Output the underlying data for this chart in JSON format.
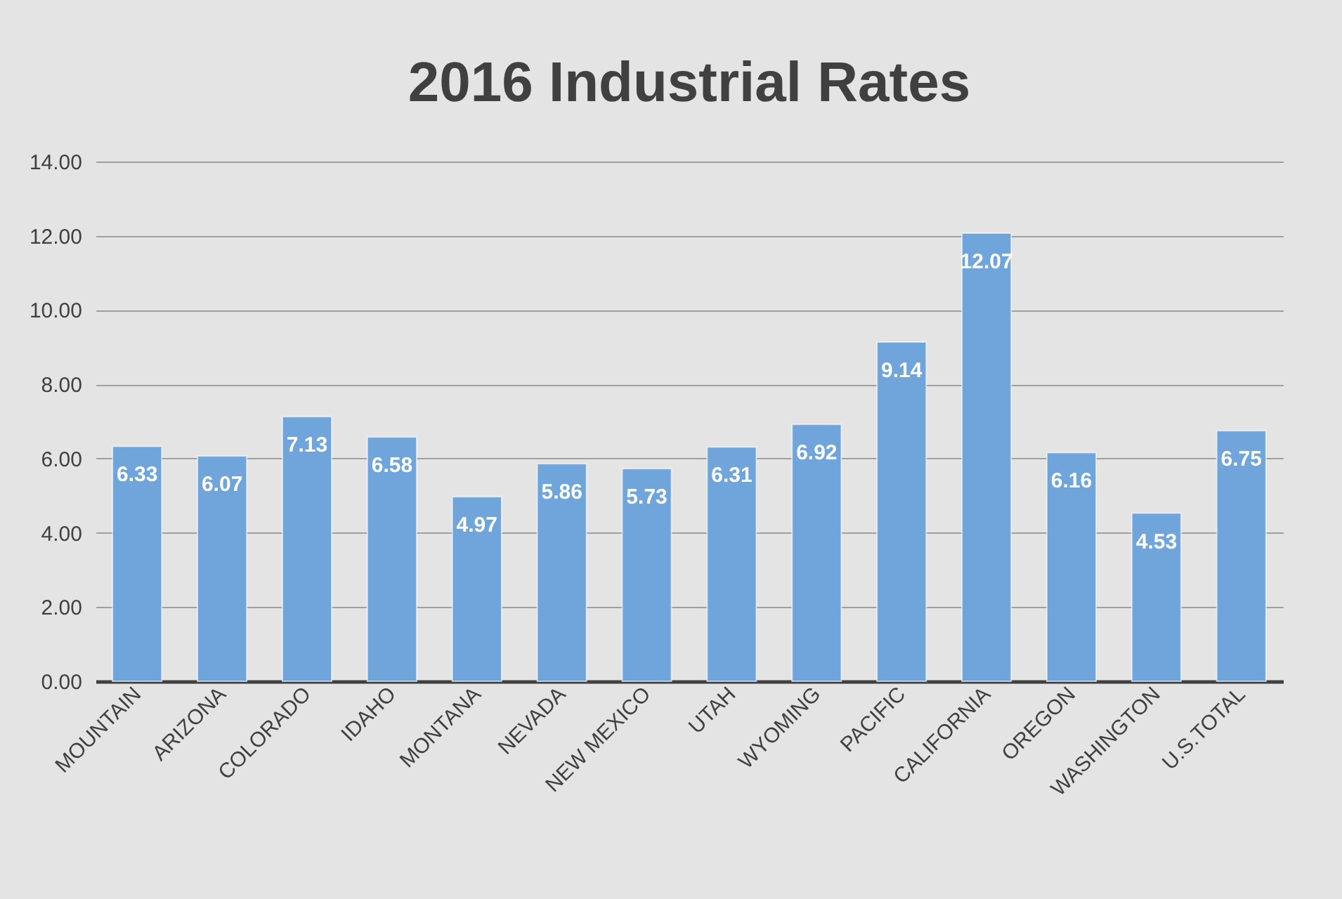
{
  "chart_data": {
    "type": "bar",
    "title": "2016 Industrial Rates",
    "categories": [
      "MOUNTAIN",
      "ARIZONA",
      "COLORADO",
      "IDAHO",
      "MONTANA",
      "NEVADA",
      "NEW MEXICO",
      "UTAH",
      "WYOMING",
      "PACIFIC",
      "CALIFORNIA",
      "OREGON",
      "WASHINGTON",
      "U.S.TOTAL"
    ],
    "values": [
      6.33,
      6.07,
      7.13,
      6.58,
      4.97,
      5.86,
      5.73,
      6.31,
      6.92,
      9.14,
      12.07,
      6.16,
      4.53,
      6.75
    ],
    "color": "#6fa5db",
    "ylim": [
      0,
      14
    ],
    "yticks": [
      {
        "value": 0,
        "label": "0.00"
      },
      {
        "value": 2,
        "label": "2.00"
      },
      {
        "value": 4,
        "label": "4.00"
      },
      {
        "value": 6,
        "label": "6.00"
      },
      {
        "value": 8,
        "label": "8.00"
      },
      {
        "value": 10,
        "label": "10.00"
      },
      {
        "value": 12,
        "label": "12.00"
      },
      {
        "value": 14,
        "label": "14.00"
      }
    ],
    "grid": "y",
    "data_labels": true
  }
}
